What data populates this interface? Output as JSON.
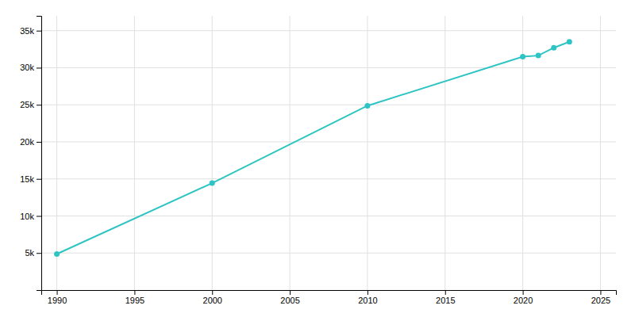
{
  "chart_data": {
    "type": "line",
    "x": [
      1990,
      2000,
      2010,
      2020,
      2021,
      2022,
      2023
    ],
    "values": [
      4865,
      14432,
      24866,
      31500,
      31640,
      32700,
      33499
    ],
    "color": "#2ec4c4",
    "marker": "circle",
    "xlim": [
      1989,
      2026
    ],
    "ylim": [
      0,
      37000
    ],
    "xticks": [
      1990,
      1995,
      2000,
      2005,
      2010,
      2015,
      2020,
      2025
    ],
    "yticks": [
      {
        "value": 5000,
        "label": "5k"
      },
      {
        "value": 10000,
        "label": "10k"
      },
      {
        "value": 15000,
        "label": "15k"
      },
      {
        "value": 20000,
        "label": "20k"
      },
      {
        "value": 25000,
        "label": "25k"
      },
      {
        "value": 30000,
        "label": "30k"
      },
      {
        "value": 35000,
        "label": "35k"
      }
    ],
    "grid": true
  }
}
